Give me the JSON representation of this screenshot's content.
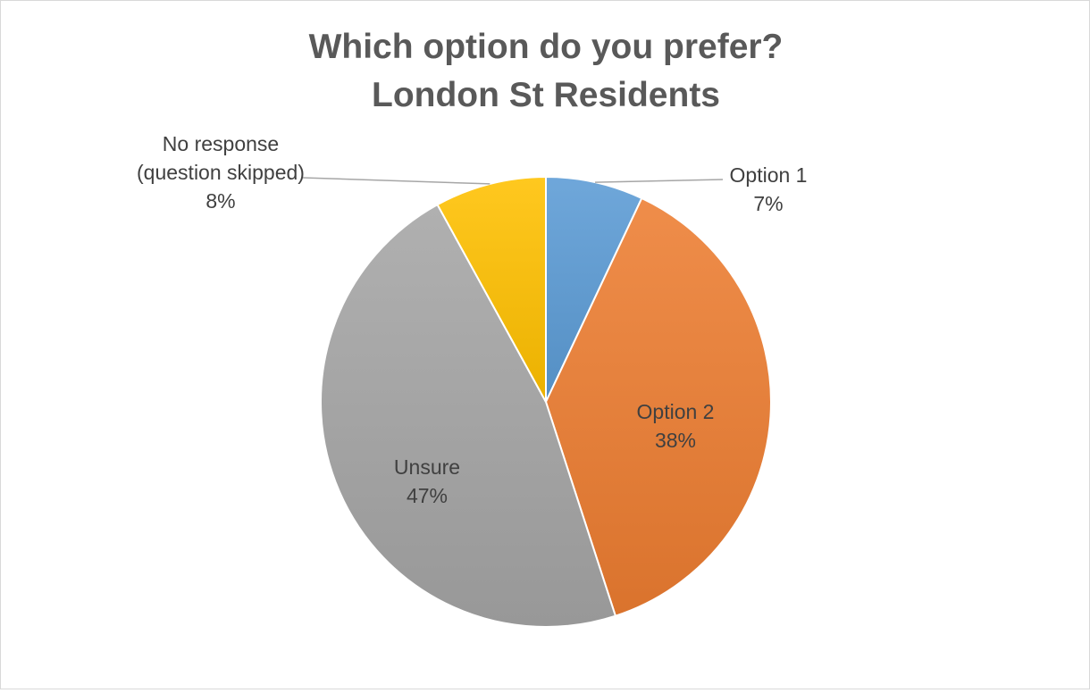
{
  "chart_data": {
    "type": "pie",
    "title": [
      "Which option do you prefer?",
      "London St Residents"
    ],
    "categories": [
      "Option 1",
      "Option 2",
      "Unsure",
      "No response (question skipped)"
    ],
    "values": [
      7,
      38,
      47,
      8
    ],
    "value_suffix": "%",
    "colors": [
      "#5b9bd5",
      "#ed7d31",
      "#a5a5a5",
      "#ffc000"
    ],
    "data_labels": [
      {
        "lines": [
          "Option 1",
          "7%"
        ]
      },
      {
        "lines": [
          "Option 2",
          "38%"
        ]
      },
      {
        "lines": [
          "Unsure",
          "47%"
        ]
      },
      {
        "lines": [
          "No response",
          "(question skipped)",
          "8%"
        ]
      }
    ],
    "legend": "none",
    "start_angle_deg": 0,
    "direction": "clockwise"
  }
}
